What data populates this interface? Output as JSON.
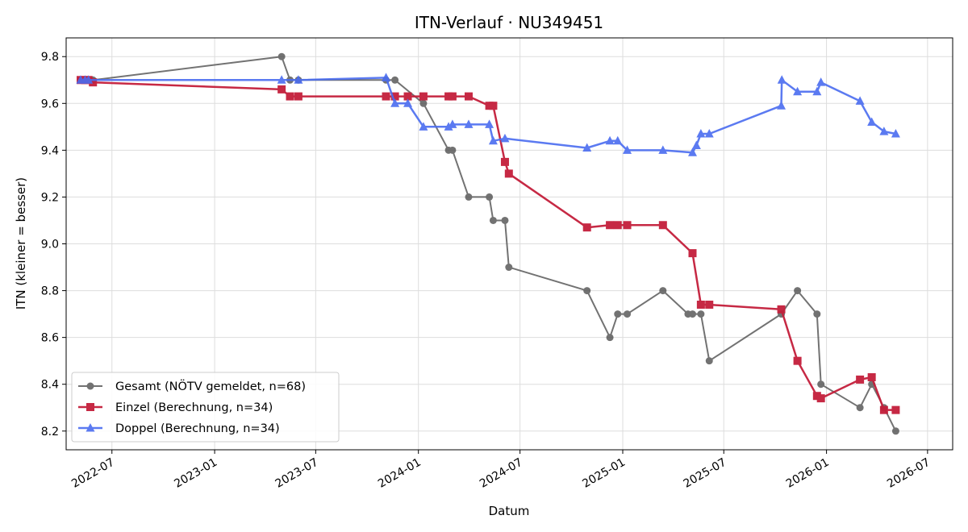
{
  "chart_data": {
    "type": "line",
    "title": "ITN-Verlauf · NU349451",
    "xlabel": "Datum",
    "ylabel": "ITN  (kleiner = besser)",
    "x_ticks": [
      "2022-07",
      "2023-01",
      "2023-07",
      "2024-01",
      "2024-07",
      "2025-01",
      "2025-07",
      "2026-01",
      "2026-07"
    ],
    "y_ticks": [
      "8.2",
      "8.4",
      "8.6",
      "8.8",
      "9.0",
      "9.2",
      "9.4",
      "9.6",
      "9.8"
    ],
    "xlim": [
      "2022-04-10",
      "2026-08-15"
    ],
    "ylim": [
      8.12,
      9.88
    ],
    "grid": true,
    "legend_position": "lower-left",
    "series": [
      {
        "name": "Gesamt (NÖTV gemeldet, n=68)",
        "color": "#444444",
        "marker": "circle",
        "points": [
          [
            "2022-05-06",
            9.7
          ],
          [
            "2022-05-14",
            9.7
          ],
          [
            "2022-05-28",
            9.7
          ],
          [
            "2023-05-01",
            9.8
          ],
          [
            "2023-05-16",
            9.7
          ],
          [
            "2023-05-31",
            9.7
          ],
          [
            "2023-11-04",
            9.7
          ],
          [
            "2023-11-20",
            9.7
          ],
          [
            "2024-01-10",
            9.6
          ],
          [
            "2024-02-24",
            9.4
          ],
          [
            "2024-03-02",
            9.4
          ],
          [
            "2024-03-31",
            9.2
          ],
          [
            "2024-05-07",
            9.2
          ],
          [
            "2024-05-14",
            9.1
          ],
          [
            "2024-06-04",
            9.1
          ],
          [
            "2024-06-11",
            8.9
          ],
          [
            "2024-10-29",
            8.8
          ],
          [
            "2024-12-09",
            8.6
          ],
          [
            "2024-12-23",
            8.7
          ],
          [
            "2025-01-09",
            8.7
          ],
          [
            "2025-03-14",
            8.8
          ],
          [
            "2025-04-28",
            8.7
          ],
          [
            "2025-05-06",
            8.7
          ],
          [
            "2025-05-21",
            8.7
          ],
          [
            "2025-06-05",
            8.5
          ],
          [
            "2025-10-12",
            8.7
          ],
          [
            "2025-11-10",
            8.8
          ],
          [
            "2025-12-15",
            8.7
          ],
          [
            "2025-12-22",
            8.4
          ],
          [
            "2026-03-02",
            8.3
          ],
          [
            "2026-03-23",
            8.4
          ],
          [
            "2026-04-14",
            8.3
          ],
          [
            "2026-05-05",
            8.2
          ]
        ]
      },
      {
        "name": "Einzel (Berechnung, n=34)",
        "color": "#c41e3a",
        "marker": "square",
        "points": [
          [
            "2022-05-06",
            9.7
          ],
          [
            "2022-05-14",
            9.7
          ],
          [
            "2022-05-20",
            9.7
          ],
          [
            "2022-05-28",
            9.69
          ],
          [
            "2023-05-01",
            9.66
          ],
          [
            "2023-05-16",
            9.63
          ],
          [
            "2023-05-31",
            9.63
          ],
          [
            "2023-11-04",
            9.63
          ],
          [
            "2023-11-20",
            9.63
          ],
          [
            "2023-12-13",
            9.63
          ],
          [
            "2024-01-10",
            9.63
          ],
          [
            "2024-02-24",
            9.63
          ],
          [
            "2024-03-02",
            9.63
          ],
          [
            "2024-03-31",
            9.63
          ],
          [
            "2024-05-07",
            9.59
          ],
          [
            "2024-05-14",
            9.59
          ],
          [
            "2024-06-04",
            9.35
          ],
          [
            "2024-06-11",
            9.3
          ],
          [
            "2024-10-29",
            9.07
          ],
          [
            "2024-12-09",
            9.08
          ],
          [
            "2024-12-23",
            9.08
          ],
          [
            "2025-01-09",
            9.08
          ],
          [
            "2025-03-14",
            9.08
          ],
          [
            "2025-05-06",
            8.96
          ],
          [
            "2025-05-21",
            8.74
          ],
          [
            "2025-06-05",
            8.74
          ],
          [
            "2025-10-12",
            8.72
          ],
          [
            "2025-11-10",
            8.5
          ],
          [
            "2025-12-15",
            8.35
          ],
          [
            "2025-12-22",
            8.34
          ],
          [
            "2026-03-02",
            8.42
          ],
          [
            "2026-03-23",
            8.43
          ],
          [
            "2026-04-14",
            8.29
          ],
          [
            "2026-05-05",
            8.29
          ]
        ]
      },
      {
        "name": "Doppel (Berechnung, n=34)",
        "color": "#4a6cf0",
        "marker": "triangle",
        "points": [
          [
            "2022-05-06",
            9.7
          ],
          [
            "2022-05-14",
            9.7
          ],
          [
            "2022-05-20",
            9.7
          ],
          [
            "2023-05-01",
            9.7
          ],
          [
            "2023-05-31",
            9.7
          ],
          [
            "2023-11-04",
            9.71
          ],
          [
            "2023-11-20",
            9.6
          ],
          [
            "2023-12-13",
            9.6
          ],
          [
            "2024-01-10",
            9.5
          ],
          [
            "2024-02-24",
            9.5
          ],
          [
            "2024-03-02",
            9.51
          ],
          [
            "2024-03-31",
            9.51
          ],
          [
            "2024-05-07",
            9.51
          ],
          [
            "2024-05-14",
            9.44
          ],
          [
            "2024-06-04",
            9.45
          ],
          [
            "2024-10-29",
            9.41
          ],
          [
            "2024-12-09",
            9.44
          ],
          [
            "2024-12-23",
            9.44
          ],
          [
            "2025-01-09",
            9.4
          ],
          [
            "2025-03-14",
            9.4
          ],
          [
            "2025-05-06",
            9.39
          ],
          [
            "2025-05-13",
            9.42
          ],
          [
            "2025-05-21",
            9.47
          ],
          [
            "2025-06-05",
            9.47
          ],
          [
            "2025-10-12",
            9.59
          ],
          [
            "2025-10-13",
            9.7
          ],
          [
            "2025-11-10",
            9.65
          ],
          [
            "2025-12-15",
            9.65
          ],
          [
            "2025-12-22",
            9.69
          ],
          [
            "2026-03-02",
            9.61
          ],
          [
            "2026-03-23",
            9.52
          ],
          [
            "2026-04-14",
            9.48
          ],
          [
            "2026-05-05",
            9.47
          ]
        ]
      }
    ]
  }
}
